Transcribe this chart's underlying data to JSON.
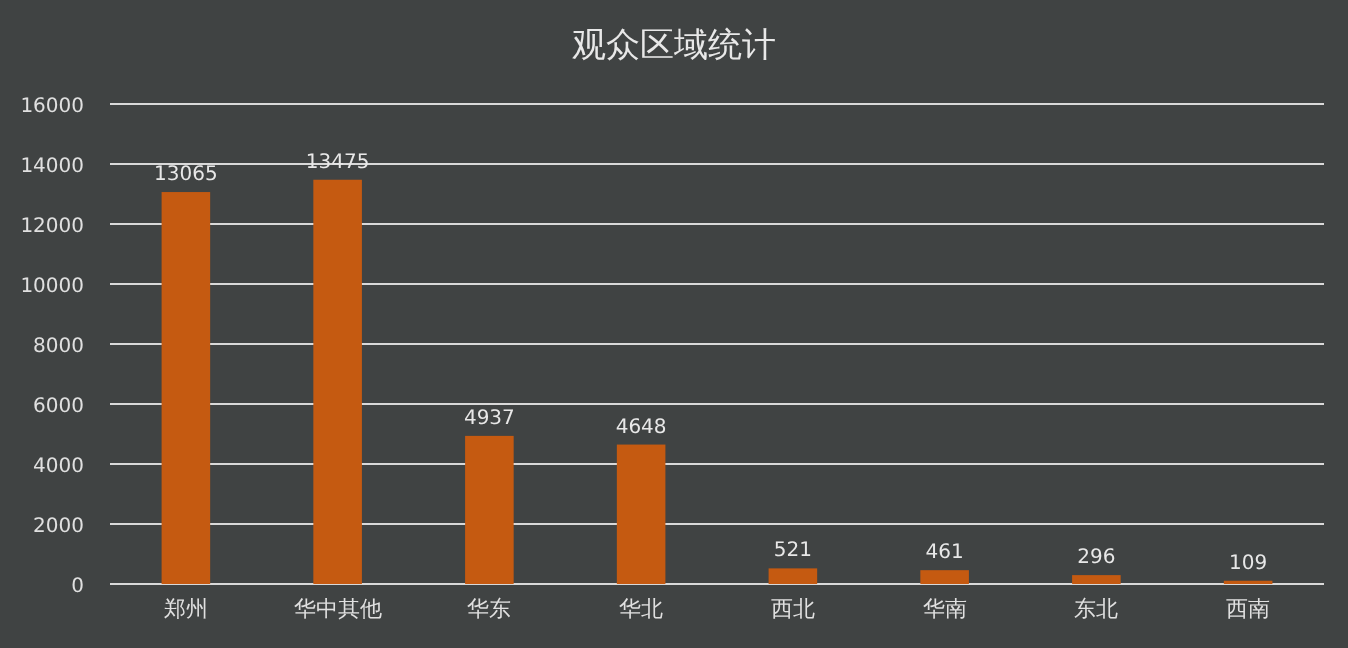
{
  "chart_data": {
    "type": "bar",
    "title": "观众区域统计",
    "categories": [
      "郑州",
      "华中其他",
      "华东",
      "华北",
      "西北",
      "华南",
      "东北",
      "西南"
    ],
    "values": [
      13065,
      13475,
      4937,
      4648,
      521,
      461,
      296,
      109
    ],
    "color": "#c55a11",
    "ylim": [
      0,
      16000
    ],
    "yticks": [
      0,
      2000,
      4000,
      6000,
      8000,
      10000,
      12000,
      14000,
      16000
    ],
    "grid": "y",
    "data_labels": true
  }
}
